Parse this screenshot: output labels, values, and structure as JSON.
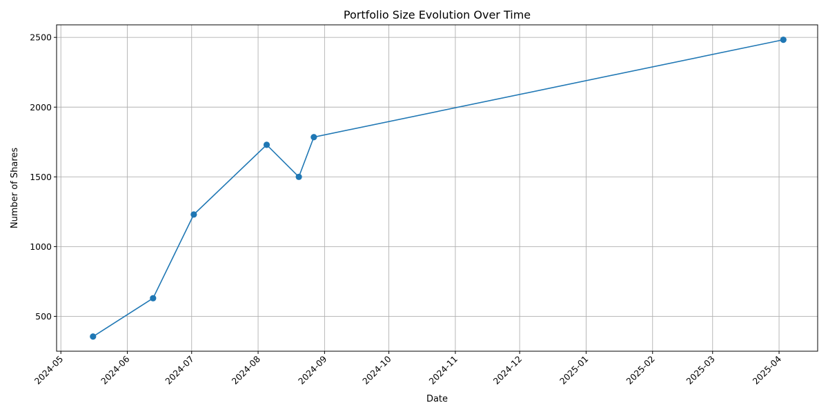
{
  "chart_data": {
    "type": "line",
    "title": "Portfolio Size Evolution Over Time",
    "xlabel": "Date",
    "ylabel": "Number of Shares",
    "x_ticks": [
      "2024-05",
      "2024-06",
      "2024-07",
      "2024-08",
      "2024-09",
      "2024-10",
      "2024-11",
      "2024-12",
      "2025-01",
      "2025-02",
      "2025-03",
      "2025-04"
    ],
    "y_ticks": [
      500,
      1000,
      1500,
      2000,
      2500
    ],
    "xlim": [
      "2024-04-29",
      "2025-04-19"
    ],
    "ylim": [
      250,
      2590
    ],
    "grid": true,
    "color": "#1f77b4",
    "series": [
      {
        "x": [
          "2024-05-16",
          "2024-06-13",
          "2024-07-02",
          "2024-08-05",
          "2024-08-20",
          "2024-08-27",
          "2025-04-03"
        ],
        "y": [
          355,
          630,
          1230,
          1730,
          1500,
          1785,
          2483
        ]
      }
    ]
  }
}
